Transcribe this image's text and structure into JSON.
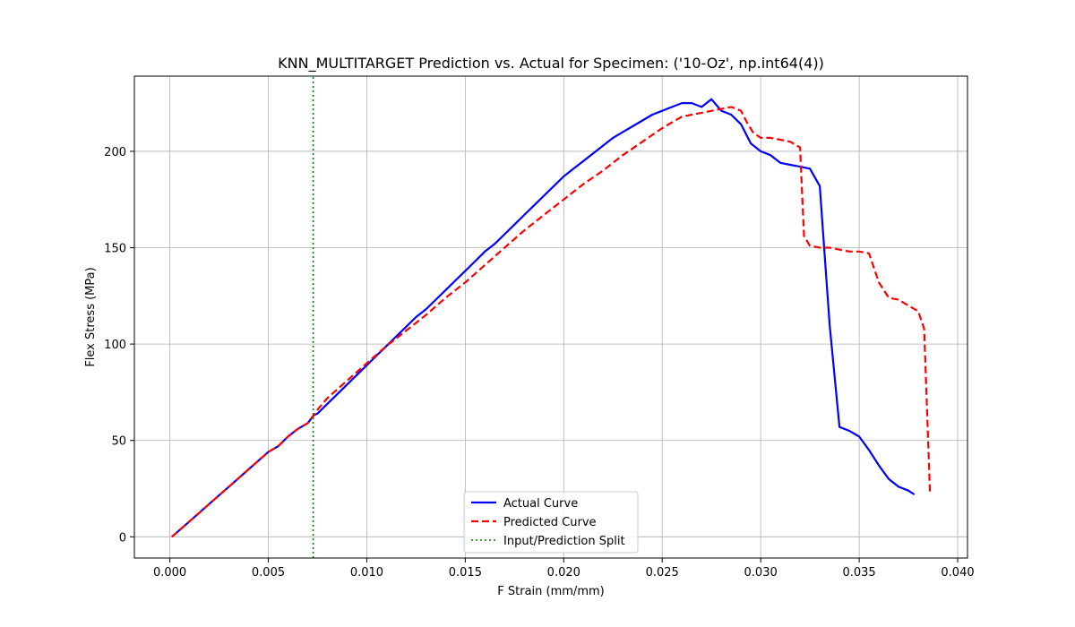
{
  "chart_data": {
    "type": "line",
    "title": "KNN_MULTITARGET Prediction vs. Actual for Specimen: ('10-Oz', np.int64(4))",
    "xlabel": "F Strain (mm/mm)",
    "ylabel": "Flex Stress (MPa)",
    "xlim": [
      -0.0018,
      0.0405
    ],
    "ylim": [
      -11,
      239
    ],
    "xticks": [
      0.0,
      0.005,
      0.01,
      0.015,
      0.02,
      0.025,
      0.03,
      0.035,
      0.04
    ],
    "xtick_labels": [
      "0.000",
      "0.005",
      "0.010",
      "0.015",
      "0.020",
      "0.025",
      "0.030",
      "0.035",
      "0.040"
    ],
    "yticks": [
      0,
      50,
      100,
      150,
      200
    ],
    "ytick_labels": [
      "0",
      "50",
      "100",
      "150",
      "200"
    ],
    "grid": true,
    "legend_position": "lower center",
    "series": [
      {
        "name": "Actual Curve",
        "color": "#0000ff",
        "style": "solid",
        "x": [
          0.0001,
          0.001,
          0.002,
          0.003,
          0.004,
          0.005,
          0.0055,
          0.006,
          0.0065,
          0.007,
          0.0073,
          0.0075,
          0.008,
          0.0085,
          0.009,
          0.0095,
          0.01,
          0.0105,
          0.011,
          0.0115,
          0.012,
          0.0125,
          0.013,
          0.0135,
          0.014,
          0.0145,
          0.015,
          0.0155,
          0.016,
          0.0165,
          0.017,
          0.0175,
          0.018,
          0.0185,
          0.019,
          0.0195,
          0.02,
          0.0205,
          0.021,
          0.0215,
          0.022,
          0.0225,
          0.023,
          0.0235,
          0.024,
          0.0245,
          0.025,
          0.0255,
          0.026,
          0.0265,
          0.027,
          0.0275,
          0.028,
          0.0285,
          0.029,
          0.0295,
          0.03,
          0.0305,
          0.031,
          0.0315,
          0.032,
          0.0325,
          0.033,
          0.0335,
          0.034,
          0.0345,
          0.035,
          0.0355,
          0.036,
          0.0365,
          0.037,
          0.0375,
          0.0378
        ],
        "y": [
          0,
          8,
          17,
          26,
          35,
          44,
          47,
          52,
          56,
          59,
          63,
          64,
          69,
          74,
          79,
          84,
          89,
          94,
          99,
          104,
          109,
          114,
          118,
          123,
          128,
          133,
          138,
          143,
          148,
          152,
          157,
          162,
          167,
          172,
          177,
          182,
          187,
          191,
          195,
          199,
          203,
          207,
          210,
          213,
          216,
          219,
          221,
          223,
          225,
          225,
          223,
          227,
          221,
          219,
          214,
          204,
          200,
          198,
          194,
          193,
          192,
          191,
          182,
          110,
          57,
          55,
          52,
          45,
          37,
          30,
          26,
          24,
          22
        ]
      },
      {
        "name": "Predicted Curve",
        "color": "#ff0000",
        "style": "dashed",
        "x": [
          0.0001,
          0.001,
          0.002,
          0.003,
          0.004,
          0.005,
          0.0055,
          0.006,
          0.0065,
          0.007,
          0.0073,
          0.0075,
          0.008,
          0.009,
          0.01,
          0.011,
          0.012,
          0.013,
          0.014,
          0.015,
          0.016,
          0.017,
          0.018,
          0.019,
          0.02,
          0.021,
          0.022,
          0.023,
          0.024,
          0.025,
          0.026,
          0.027,
          0.028,
          0.0285,
          0.029,
          0.0293,
          0.0296,
          0.03,
          0.0305,
          0.031,
          0.0315,
          0.032,
          0.0322,
          0.0325,
          0.033,
          0.0335,
          0.034,
          0.0345,
          0.035,
          0.0355,
          0.036,
          0.0365,
          0.037,
          0.0375,
          0.038,
          0.0383,
          0.0386
        ],
        "y": [
          0,
          8,
          17,
          26,
          35,
          44,
          47,
          52,
          56,
          59,
          63,
          66,
          72,
          81,
          90,
          99,
          107,
          115,
          124,
          132,
          141,
          150,
          159,
          167,
          175,
          183,
          190,
          198,
          205,
          212,
          218,
          220,
          222,
          223,
          221,
          215,
          210,
          207,
          207,
          206,
          205,
          202,
          156,
          151,
          150,
          150,
          149,
          148,
          148,
          147,
          132,
          124,
          123,
          120,
          117,
          108,
          22
        ]
      },
      {
        "name": "Input/Prediction Split",
        "color": "#008000",
        "style": "dotted",
        "x": [
          0.00728,
          0.00728
        ],
        "y": [
          -11,
          239
        ]
      }
    ]
  }
}
